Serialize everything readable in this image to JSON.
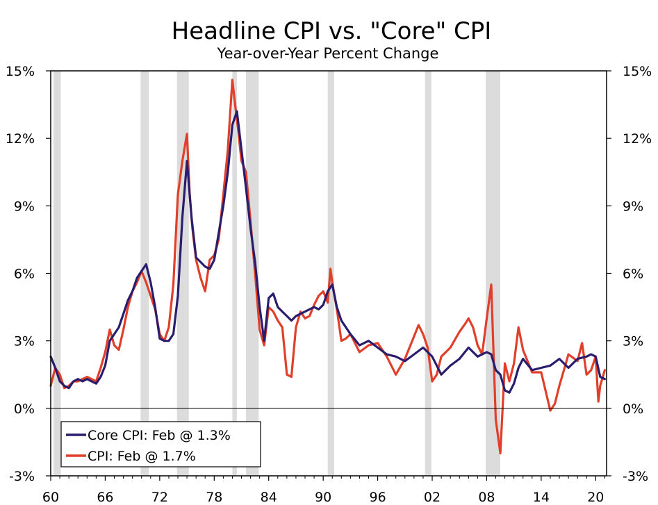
{
  "chart_data": {
    "type": "line",
    "title": "Headline CPI vs. \"Core\" CPI",
    "subtitle": "Year-over-Year Percent Change",
    "xlabel": "",
    "ylabel": "",
    "xlim": [
      1960,
      2021.2
    ],
    "ylim": [
      -3,
      15
    ],
    "y_ticks": [
      15,
      12,
      9,
      6,
      3,
      0,
      -3
    ],
    "y_tick_labels": [
      "15%",
      "12%",
      "9%",
      "6%",
      "3%",
      "0%",
      "-3%"
    ],
    "x_ticks": [
      1960,
      1966,
      1972,
      1978,
      1984,
      1990,
      1996,
      2002,
      2008,
      2014,
      2020
    ],
    "x_tick_labels": [
      "60",
      "66",
      "72",
      "78",
      "84",
      "90",
      "96",
      "02",
      "08",
      "14",
      "20"
    ],
    "recessions": [
      [
        1960.3,
        1961.1
      ],
      [
        1969.9,
        1970.8
      ],
      [
        1973.9,
        1975.2
      ],
      [
        1980.0,
        1980.5
      ],
      [
        1981.5,
        1982.9
      ],
      [
        1990.5,
        1991.2
      ],
      [
        2001.2,
        2001.9
      ],
      [
        2007.9,
        2009.5
      ]
    ],
    "legend": [
      "Core CPI: Feb @ 1.3%",
      "CPI: Feb @ 1.7%"
    ],
    "colors": {
      "core": "#2b1d6e",
      "cpi": "#e0402a",
      "recession": "#dcdcdc"
    },
    "series": [
      {
        "name": "Core CPI",
        "x": [
          1960.0,
          1960.5,
          1961.0,
          1961.5,
          1962.0,
          1962.5,
          1963.0,
          1963.5,
          1964.0,
          1964.5,
          1965.0,
          1965.5,
          1966.0,
          1966.5,
          1967.0,
          1967.5,
          1968.0,
          1968.5,
          1969.0,
          1969.5,
          1970.0,
          1970.5,
          1971.0,
          1971.5,
          1972.0,
          1972.5,
          1973.0,
          1973.5,
          1974.0,
          1974.5,
          1975.0,
          1975.5,
          1976.0,
          1976.5,
          1977.0,
          1977.5,
          1978.0,
          1978.5,
          1979.0,
          1979.5,
          1980.0,
          1980.5,
          1981.0,
          1981.5,
          1982.0,
          1982.5,
          1983.0,
          1983.5,
          1984.0,
          1984.5,
          1985.0,
          1985.5,
          1986.0,
          1986.5,
          1987.0,
          1987.5,
          1988.0,
          1988.5,
          1989.0,
          1989.5,
          1990.0,
          1990.5,
          1991.0,
          1991.5,
          1992.0,
          1992.5,
          1993.0,
          1994.0,
          1995.0,
          1996.0,
          1997.0,
          1998.0,
          1999.0,
          2000.0,
          2001.0,
          2002.0,
          2003.0,
          2004.0,
          2005.0,
          2006.0,
          2007.0,
          2008.0,
          2008.5,
          2009.0,
          2009.5,
          2010.0,
          2010.5,
          2011.0,
          2011.5,
          2012.0,
          2013.0,
          2014.0,
          2015.0,
          2016.0,
          2017.0,
          2018.0,
          2019.0,
          2019.5,
          2020.0,
          2020.5,
          2021.0
        ],
        "values": [
          2.3,
          1.8,
          1.2,
          1.0,
          0.9,
          1.2,
          1.3,
          1.2,
          1.3,
          1.2,
          1.1,
          1.4,
          1.9,
          3.0,
          3.3,
          3.6,
          4.2,
          4.8,
          5.2,
          5.8,
          6.1,
          6.4,
          5.6,
          4.5,
          3.1,
          3.0,
          3.0,
          3.3,
          5.0,
          8.5,
          11.0,
          8.5,
          6.7,
          6.5,
          6.3,
          6.2,
          6.6,
          7.8,
          9.0,
          10.5,
          12.6,
          13.2,
          11.5,
          9.8,
          8.0,
          6.5,
          4.5,
          3.0,
          4.9,
          5.1,
          4.5,
          4.3,
          4.1,
          3.9,
          4.1,
          4.2,
          4.3,
          4.4,
          4.5,
          4.4,
          4.6,
          5.2,
          5.5,
          4.5,
          3.9,
          3.6,
          3.3,
          2.8,
          3.0,
          2.7,
          2.4,
          2.3,
          2.1,
          2.4,
          2.7,
          2.3,
          1.5,
          1.9,
          2.2,
          2.7,
          2.3,
          2.5,
          2.4,
          1.7,
          1.5,
          0.8,
          0.7,
          1.1,
          1.8,
          2.2,
          1.7,
          1.8,
          1.9,
          2.2,
          1.8,
          2.2,
          2.3,
          2.4,
          2.3,
          1.4,
          1.3
        ]
      },
      {
        "name": "CPI",
        "x": [
          1960.0,
          1960.5,
          1961.0,
          1961.5,
          1962.0,
          1962.5,
          1963.0,
          1963.5,
          1964.0,
          1964.5,
          1965.0,
          1965.5,
          1966.0,
          1966.5,
          1967.0,
          1967.5,
          1968.0,
          1968.5,
          1969.0,
          1969.5,
          1970.0,
          1970.5,
          1971.0,
          1971.5,
          1972.0,
          1972.5,
          1973.0,
          1973.5,
          1974.0,
          1974.5,
          1975.0,
          1975.3,
          1975.6,
          1976.0,
          1976.5,
          1977.0,
          1977.5,
          1978.0,
          1978.5,
          1979.0,
          1979.5,
          1980.0,
          1980.3,
          1980.6,
          1981.0,
          1981.5,
          1982.0,
          1982.5,
          1983.0,
          1983.5,
          1984.0,
          1984.5,
          1985.0,
          1985.5,
          1986.0,
          1986.5,
          1987.0,
          1987.5,
          1988.0,
          1988.5,
          1989.0,
          1989.5,
          1990.0,
          1990.5,
          1990.8,
          1991.0,
          1991.5,
          1992.0,
          1992.5,
          1993.0,
          1994.0,
          1995.0,
          1996.0,
          1997.0,
          1998.0,
          1999.0,
          2000.0,
          2000.5,
          2001.0,
          2001.5,
          2002.0,
          2002.5,
          2003.0,
          2004.0,
          2005.0,
          2005.7,
          2006.0,
          2006.5,
          2007.0,
          2007.5,
          2008.0,
          2008.5,
          2009.0,
          2009.5,
          2010.0,
          2010.5,
          2011.0,
          2011.5,
          2012.0,
          2013.0,
          2014.0,
          2015.0,
          2015.5,
          2016.0,
          2016.5,
          2017.0,
          2018.0,
          2018.5,
          2019.0,
          2019.5,
          2020.0,
          2020.3,
          2020.5,
          2021.0
        ],
        "values": [
          1.0,
          1.8,
          1.5,
          0.9,
          1.0,
          1.2,
          1.2,
          1.3,
          1.4,
          1.3,
          1.2,
          1.8,
          2.5,
          3.5,
          2.8,
          2.6,
          3.5,
          4.5,
          5.2,
          5.6,
          6.1,
          5.6,
          5.0,
          4.4,
          3.3,
          3.0,
          3.6,
          5.5,
          9.5,
          11.0,
          12.2,
          9.5,
          8.0,
          6.6,
          5.8,
          5.2,
          6.6,
          6.8,
          7.5,
          9.5,
          11.5,
          14.6,
          13.5,
          12.5,
          11.0,
          10.5,
          8.3,
          6.0,
          3.5,
          2.8,
          4.5,
          4.3,
          3.9,
          3.6,
          1.5,
          1.4,
          3.6,
          4.3,
          4.0,
          4.1,
          4.6,
          5.0,
          5.2,
          4.7,
          6.2,
          5.6,
          4.4,
          3.0,
          3.1,
          3.3,
          2.5,
          2.8,
          2.9,
          2.3,
          1.5,
          2.2,
          3.2,
          3.7,
          3.3,
          2.7,
          1.2,
          1.5,
          2.3,
          2.7,
          3.4,
          3.8,
          4.0,
          3.6,
          2.8,
          2.4,
          4.0,
          5.5,
          -0.5,
          -2.0,
          2.0,
          1.2,
          2.0,
          3.6,
          2.6,
          1.6,
          1.6,
          -0.1,
          0.2,
          1.0,
          1.7,
          2.4,
          2.1,
          2.9,
          1.5,
          1.7,
          2.3,
          0.3,
          1.0,
          1.7
        ]
      }
    ]
  }
}
